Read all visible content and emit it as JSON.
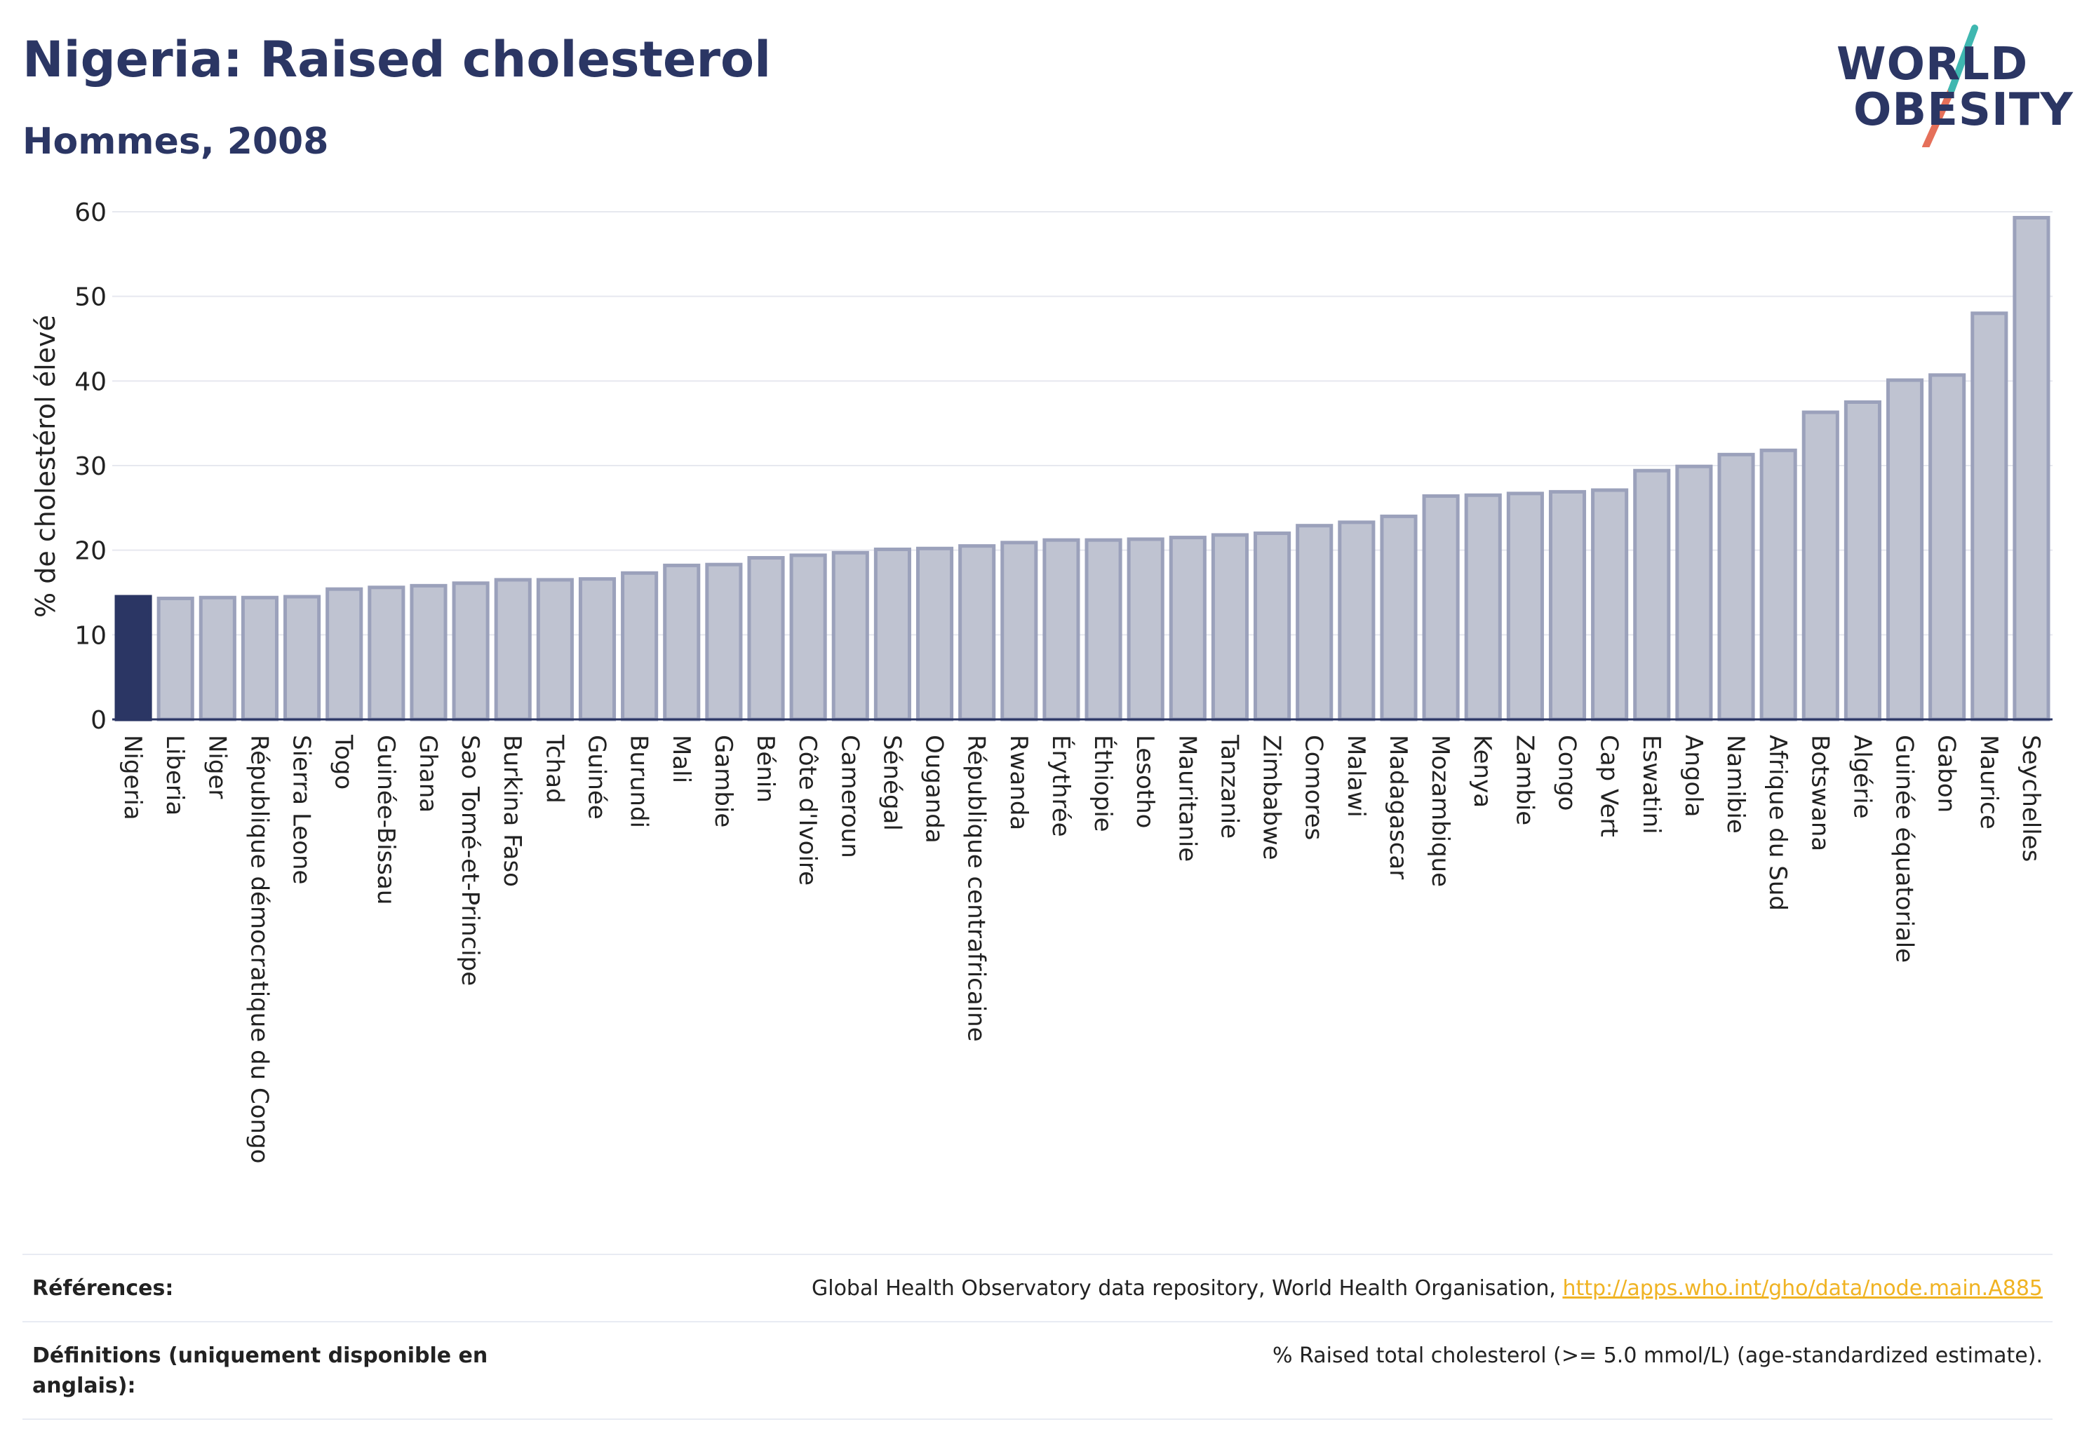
{
  "header": {
    "title": "Nigeria: Raised cholesterol",
    "subtitle": "Hommes, 2008"
  },
  "logo": {
    "line1": "WORLD",
    "line2": "OBESITY",
    "colors": {
      "text": "#2b3664",
      "slash_top": "#3fb7b0",
      "slash_bottom": "#e5705a"
    }
  },
  "chart_data": {
    "type": "bar",
    "ylabel": "% de cholestérol élevé",
    "ylim": [
      0,
      60
    ],
    "yticks": [
      0,
      10,
      20,
      30,
      40,
      50,
      60
    ],
    "grid": true,
    "highlight": "Nigeria",
    "colors": {
      "highlight": "#2b3664",
      "bar_fill": "#bfc3d1",
      "bar_stroke": "#9ba1bb"
    },
    "categories": [
      "Nigeria",
      "Liberia",
      "Niger",
      "République démocratique du Congo",
      "Sierra Leone",
      "Togo",
      "Guinée-Bissau",
      "Ghana",
      "Sao Tomé-et-Principe",
      "Burkina Faso",
      "Tchad",
      "Guinée",
      "Burundi",
      "Mali",
      "Gambie",
      "Bénin",
      "Côte d'Ivoire",
      "Cameroun",
      "Sénégal",
      "Ouganda",
      "République centrafricaine",
      "Rwanda",
      "Érythrée",
      "Éthiopie",
      "Lesotho",
      "Mauritanie",
      "Tanzanie",
      "Zimbabwe",
      "Comores",
      "Malawi",
      "Madagascar",
      "Mozambique",
      "Kenya",
      "Zambie",
      "Congo",
      "Cap Vert",
      "Eswatini",
      "Angola",
      "Namibie",
      "Afrique du Sud",
      "Botswana",
      "Algérie",
      "Guinée équatoriale",
      "Gabon",
      "Maurice",
      "Seychelles"
    ],
    "values": [
      14.5,
      14.3,
      14.4,
      14.4,
      14.5,
      15.4,
      15.6,
      15.8,
      16.1,
      16.5,
      16.5,
      16.6,
      17.3,
      18.2,
      18.3,
      19.1,
      19.4,
      19.7,
      20.1,
      20.2,
      20.5,
      20.9,
      21.2,
      21.2,
      21.3,
      21.5,
      21.8,
      22.0,
      22.9,
      23.3,
      24.0,
      26.4,
      26.5,
      26.7,
      26.9,
      27.1,
      29.4,
      29.9,
      31.3,
      31.8,
      36.3,
      37.5,
      40.1,
      40.7,
      48.0,
      59.3
    ]
  },
  "references": {
    "label": "Références:",
    "text": "Global Health Observatory data repository, World Health Organisation,",
    "link": "http://apps.who.int/gho/data/node.main.A885"
  },
  "definitions": {
    "label": "Définitions (uniquement disponible en anglais):",
    "text": "% Raised total cholesterol (>= 5.0 mmol/L) (age-standardized estimate)."
  }
}
